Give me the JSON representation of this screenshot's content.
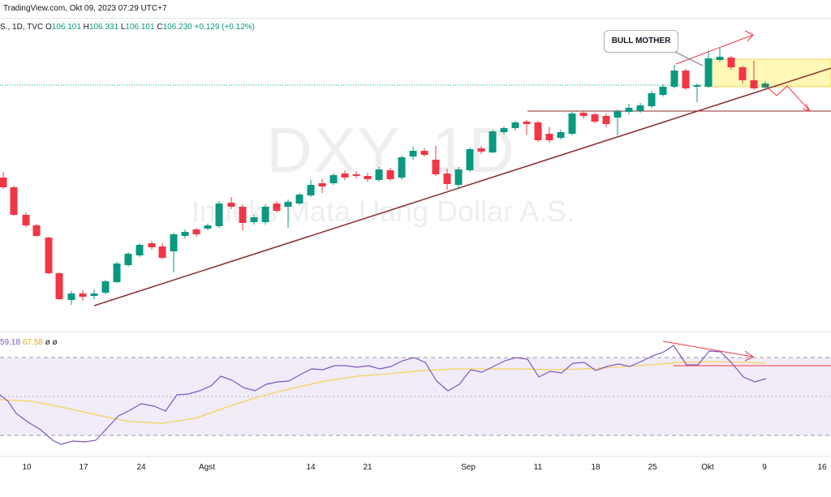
{
  "header": {
    "watermark_source": "TradingView.com, Okt 09, 2023 07:29 UTC+7"
  },
  "legend": {
    "prefix": "S., 1D, TVC",
    "o_label": "O",
    "o_value": "106.101",
    "h_label": "H",
    "h_value": "106.331",
    "l_label": "L",
    "l_value": "106.101",
    "c_label": "C",
    "c_value": "106.230",
    "change": "+0.129 (+0.12%)"
  },
  "watermark": {
    "symbol": "DXY, 1D",
    "name": "Indeks Mata Uang Dollar A.S."
  },
  "annotation": {
    "label": "BULL MOTHER"
  },
  "rsi_legend": {
    "rsi": "59.18",
    "ma": "67.58",
    "v3": "ø",
    "v4": "ø"
  },
  "x_axis": {
    "labels": [
      "10",
      "17",
      "24",
      "Agst",
      "14",
      "21",
      "Sep",
      "11",
      "18",
      "25",
      "Okt",
      "9",
      "16"
    ]
  },
  "colors": {
    "up": "#089981",
    "down": "#f23645",
    "trendline": "#8b2a2a",
    "rsi_line": "#7e57c2",
    "rsi_ma": "#f5d45c",
    "rsi_band": "#ede7f6",
    "zone": "#fff59d",
    "arrow": "#f23645"
  },
  "chart_data": {
    "type": "candlestick",
    "x_labels": [
      "10",
      "17",
      "24",
      "Agst",
      "14",
      "21",
      "Sep",
      "11",
      "18",
      "25",
      "Okt",
      "9",
      "16"
    ],
    "last_price": 106.23,
    "indicator": "RSI",
    "rsi_last": 59.18,
    "rsi_ma_last": 67.58
  }
}
